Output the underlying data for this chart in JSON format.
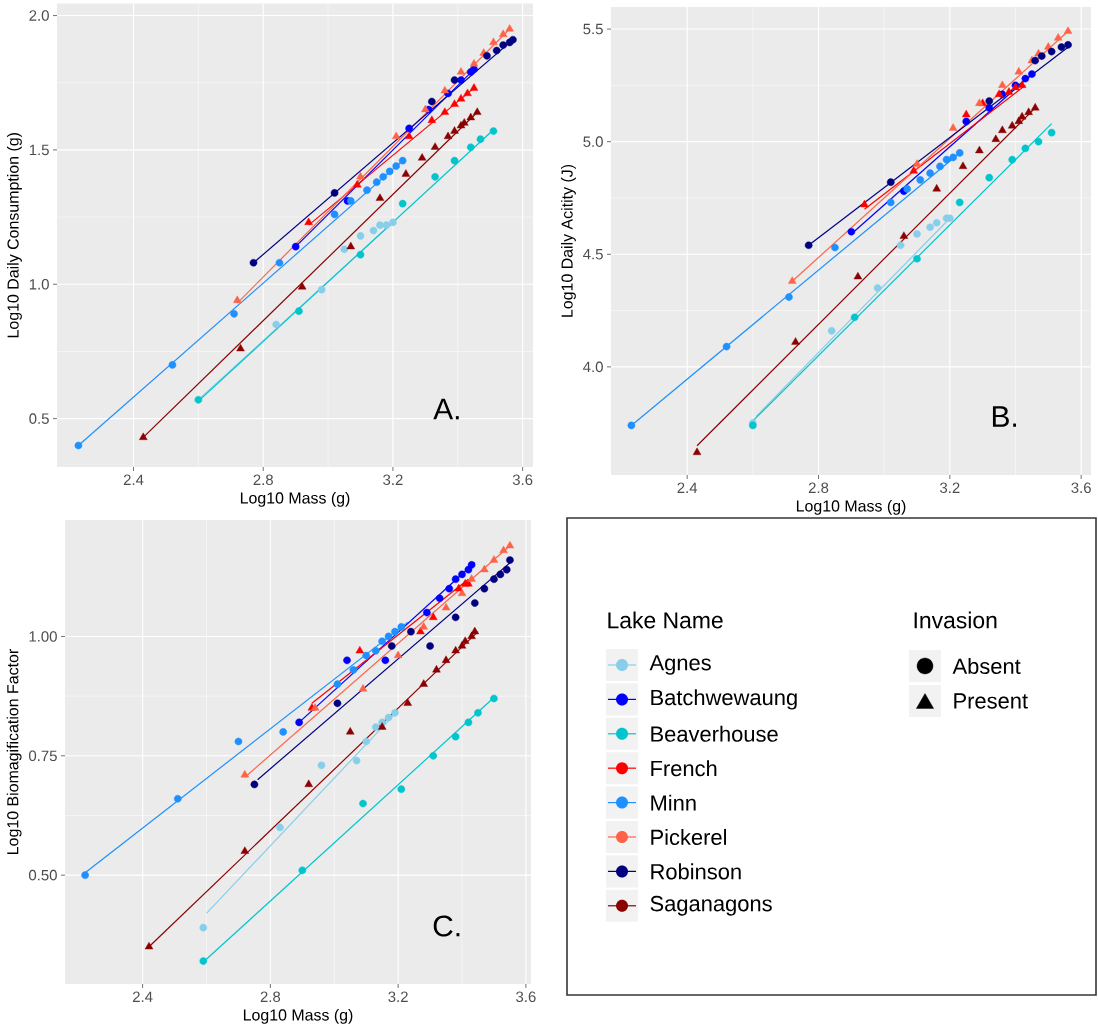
{
  "chart_data": [
    {
      "type": "scatter",
      "xlabel": "Log10 Mass (g)",
      "ylabel": "Log10 Daily Consumption (g)",
      "annotations": [
        "A."
      ],
      "grid": true,
      "xlim": [
        2.164,
        3.632
      ],
      "ylim": [
        0.32,
        2.045
      ],
      "xticks": [
        2.4,
        2.8,
        3.2,
        3.6
      ],
      "yticks": [
        {
          "value": 0.5,
          "label": "0.5"
        },
        {
          "value": 1.0,
          "label": "1.0"
        },
        {
          "value": 1.5,
          "label": "1.5"
        },
        {
          "value": 2.0,
          "label": "2.0"
        }
      ],
      "series": [
        {
          "color": "#87ceeb",
          "marker": "circle",
          "x": [
            2.84,
            2.98,
            3.05,
            3.1,
            3.14,
            3.16,
            3.18,
            3.2
          ],
          "values": [
            0.85,
            0.98,
            1.13,
            1.18,
            1.2,
            1.22,
            1.22,
            1.23
          ]
        },
        {
          "type": "line",
          "color": "#87ceeb",
          "x": [
            2.6,
            3.2
          ],
          "values": [
            0.57,
            1.23
          ]
        },
        {
          "color": "#0000ff",
          "marker": "circle",
          "x": [
            2.9,
            3.06,
            3.25,
            3.31,
            3.37,
            3.41,
            3.44,
            3.45
          ],
          "values": [
            1.14,
            1.31,
            1.58,
            1.65,
            1.71,
            1.76,
            1.79,
            1.8
          ]
        },
        {
          "type": "line",
          "color": "#0000ff",
          "x": [
            2.9,
            3.45
          ],
          "values": [
            1.14,
            1.8
          ]
        },
        {
          "color": "#00c5cd",
          "marker": "circle",
          "x": [
            2.6,
            2.91,
            3.1,
            3.23,
            3.33,
            3.39,
            3.44,
            3.47,
            3.51
          ],
          "values": [
            0.57,
            0.9,
            1.11,
            1.3,
            1.4,
            1.46,
            1.51,
            1.54,
            1.57
          ]
        },
        {
          "type": "line",
          "color": "#00c5cd",
          "x": [
            2.6,
            3.51
          ],
          "values": [
            0.565,
            1.575
          ]
        },
        {
          "color": "#ff0000",
          "marker": "triangle",
          "x": [
            2.94,
            3.09,
            3.25,
            3.32,
            3.36,
            3.39,
            3.41,
            3.43,
            3.45
          ],
          "values": [
            1.23,
            1.37,
            1.55,
            1.61,
            1.64,
            1.67,
            1.69,
            1.71,
            1.73
          ]
        },
        {
          "type": "line",
          "color": "#ff0000",
          "x": [
            2.94,
            3.45
          ],
          "values": [
            1.22,
            1.73
          ]
        },
        {
          "color": "#1e90ff",
          "marker": "circle",
          "x": [
            2.23,
            2.52,
            2.71,
            2.85,
            3.02,
            3.07,
            3.12,
            3.15,
            3.17,
            3.19,
            3.21,
            3.23
          ],
          "values": [
            0.4,
            0.7,
            0.89,
            1.08,
            1.26,
            1.31,
            1.35,
            1.38,
            1.4,
            1.42,
            1.44,
            1.46
          ]
        },
        {
          "type": "line",
          "color": "#1e90ff",
          "x": [
            2.23,
            3.23
          ],
          "values": [
            0.4,
            1.46
          ]
        },
        {
          "color": "#ff6347",
          "marker": "triangle",
          "x": [
            2.72,
            3.1,
            3.21,
            3.3,
            3.36,
            3.41,
            3.45,
            3.48,
            3.51,
            3.54,
            3.56
          ],
          "values": [
            0.94,
            1.4,
            1.55,
            1.65,
            1.72,
            1.79,
            1.82,
            1.86,
            1.9,
            1.93,
            1.95
          ]
        },
        {
          "type": "line",
          "color": "#ff6347",
          "x": [
            2.72,
            3.56
          ],
          "values": [
            0.93,
            1.95
          ]
        },
        {
          "color": "#000080",
          "marker": "circle",
          "x": [
            2.77,
            3.02,
            3.32,
            3.39,
            3.49,
            3.52,
            3.54,
            3.56,
            3.57
          ],
          "values": [
            1.08,
            1.34,
            1.68,
            1.76,
            1.85,
            1.87,
            1.89,
            1.9,
            1.91
          ]
        },
        {
          "type": "line",
          "color": "#000080",
          "x": [
            2.77,
            3.57
          ],
          "values": [
            1.08,
            1.91
          ]
        },
        {
          "color": "#8b0000",
          "marker": "triangle",
          "x": [
            2.43,
            2.73,
            2.92,
            3.07,
            3.16,
            3.24,
            3.29,
            3.33,
            3.37,
            3.39,
            3.41,
            3.42,
            3.44,
            3.46
          ],
          "values": [
            0.43,
            0.76,
            0.99,
            1.14,
            1.32,
            1.41,
            1.47,
            1.51,
            1.55,
            1.57,
            1.59,
            1.6,
            1.62,
            1.64
          ]
        },
        {
          "type": "line",
          "color": "#8b0000",
          "x": [
            2.43,
            3.46
          ],
          "values": [
            0.43,
            1.64
          ]
        }
      ]
    },
    {
      "type": "scatter",
      "xlabel": "Log10 Mass (g)",
      "ylabel": "Log10 Daily Acitity (J)",
      "annotations": [
        "B."
      ],
      "grid": true,
      "xlim": [
        2.168,
        3.63
      ],
      "ylim": [
        3.52,
        5.598
      ],
      "xticks": [
        2.4,
        2.8,
        3.2,
        3.6
      ],
      "yticks": [
        {
          "value": 4.0,
          "label": "4.0"
        },
        {
          "value": 4.5,
          "label": "4.5"
        },
        {
          "value": 5.0,
          "label": "5.0"
        },
        {
          "value": 5.5,
          "label": "5.5"
        }
      ],
      "series": [
        {
          "color": "#87ceeb",
          "marker": "circle",
          "x": [
            2.6,
            2.84,
            2.98,
            3.05,
            3.1,
            3.14,
            3.16,
            3.19,
            3.2
          ],
          "values": [
            3.75,
            4.16,
            4.35,
            4.54,
            4.59,
            4.62,
            4.64,
            4.66,
            4.66
          ]
        },
        {
          "type": "line",
          "color": "#87ceeb",
          "x": [
            2.61,
            3.2
          ],
          "values": [
            3.78,
            4.66
          ]
        },
        {
          "color": "#0000ff",
          "marker": "circle",
          "x": [
            2.9,
            3.06,
            3.25,
            3.32,
            3.36,
            3.4,
            3.43,
            3.45
          ],
          "values": [
            4.6,
            4.78,
            5.09,
            5.15,
            5.21,
            5.25,
            5.28,
            5.3
          ]
        },
        {
          "type": "line",
          "color": "#0000ff",
          "x": [
            2.9,
            3.45
          ],
          "values": [
            4.59,
            5.3
          ]
        },
        {
          "color": "#00c5cd",
          "marker": "circle",
          "x": [
            2.6,
            2.91,
            3.1,
            3.23,
            3.32,
            3.39,
            3.43,
            3.47,
            3.51
          ],
          "values": [
            3.74,
            4.22,
            4.48,
            4.73,
            4.84,
            4.92,
            4.97,
            5.0,
            5.04
          ]
        },
        {
          "type": "line",
          "color": "#00c5cd",
          "x": [
            2.6,
            3.51
          ],
          "values": [
            3.76,
            5.08
          ]
        },
        {
          "color": "#ff0000",
          "marker": "triangle",
          "x": [
            2.94,
            3.09,
            3.25,
            3.3,
            3.35,
            3.38,
            3.4,
            3.42
          ],
          "values": [
            4.72,
            4.87,
            5.12,
            5.17,
            5.21,
            5.22,
            5.24,
            5.25
          ]
        },
        {
          "type": "line",
          "color": "#ff0000",
          "x": [
            2.94,
            3.43
          ],
          "values": [
            4.7,
            5.25
          ]
        },
        {
          "color": "#1e90ff",
          "marker": "circle",
          "x": [
            2.23,
            2.52,
            2.71,
            2.85,
            3.02,
            3.07,
            3.11,
            3.14,
            3.17,
            3.19,
            3.21,
            3.23
          ],
          "values": [
            3.74,
            4.09,
            4.31,
            4.53,
            4.73,
            4.79,
            4.83,
            4.86,
            4.89,
            4.92,
            4.93,
            4.95
          ]
        },
        {
          "type": "line",
          "color": "#1e90ff",
          "x": [
            2.23,
            3.23
          ],
          "values": [
            3.74,
            4.95
          ]
        },
        {
          "color": "#ff6347",
          "marker": "triangle",
          "x": [
            2.72,
            3.1,
            3.21,
            3.29,
            3.36,
            3.41,
            3.45,
            3.47,
            3.5,
            3.53,
            3.56
          ],
          "values": [
            4.38,
            4.9,
            5.06,
            5.17,
            5.25,
            5.31,
            5.36,
            5.39,
            5.42,
            5.46,
            5.49
          ]
        },
        {
          "type": "line",
          "color": "#ff6347",
          "x": [
            2.72,
            3.56
          ],
          "values": [
            4.38,
            5.49
          ]
        },
        {
          "color": "#000080",
          "marker": "circle",
          "x": [
            2.77,
            3.02,
            3.32,
            3.46,
            3.48,
            3.51,
            3.54,
            3.56
          ],
          "values": [
            4.54,
            4.82,
            5.18,
            5.36,
            5.38,
            5.4,
            5.42,
            5.43
          ]
        },
        {
          "type": "line",
          "color": "#000080",
          "x": [
            2.77,
            3.57
          ],
          "values": [
            4.54,
            5.43
          ]
        },
        {
          "color": "#8b0000",
          "marker": "triangle",
          "x": [
            2.43,
            2.73,
            2.92,
            3.06,
            3.16,
            3.24,
            3.29,
            3.34,
            3.36,
            3.39,
            3.41,
            3.42,
            3.44,
            3.46
          ],
          "values": [
            3.62,
            4.11,
            4.4,
            4.58,
            4.79,
            4.89,
            4.96,
            5.01,
            5.05,
            5.07,
            5.09,
            5.11,
            5.13,
            5.15
          ]
        },
        {
          "type": "line",
          "color": "#8b0000",
          "x": [
            2.43,
            3.46
          ],
          "values": [
            3.65,
            5.15
          ]
        }
      ]
    },
    {
      "type": "scatter",
      "xlabel": "Log10 Mass (g)",
      "ylabel": "Log10 Biomagification Factor",
      "legend_title": "Lake Name",
      "legend": "right",
      "annotations": [
        "C.",
        "Invasion",
        "Absent",
        "Present"
      ],
      "grid": true,
      "xlim": [
        2.157,
        3.616
      ],
      "ylim": [
        0.272,
        1.244
      ],
      "xticks": [
        2.4,
        2.8,
        3.2,
        3.6
      ],
      "yticks": [
        {
          "value": 0.5,
          "label": "0.50"
        },
        {
          "value": 0.75,
          "label": "0.75"
        },
        {
          "value": 1.0,
          "label": "1.00"
        }
      ],
      "series": [
        {
          "name": "Agnes",
          "color": "#87ceeb",
          "marker": "circle",
          "x": [
            2.59,
            2.83,
            2.96,
            3.07,
            3.1,
            3.13,
            3.15,
            3.17,
            3.19
          ],
          "values": [
            0.39,
            0.6,
            0.73,
            0.74,
            0.78,
            0.81,
            0.82,
            0.83,
            0.84
          ]
        },
        {
          "type": "line",
          "color": "#87ceeb",
          "x": [
            2.6,
            3.2
          ],
          "values": [
            0.42,
            0.845
          ]
        },
        {
          "name": "Batchwewaung",
          "color": "#0000ff",
          "marker": "circle",
          "x": [
            2.89,
            3.04,
            3.16,
            3.29,
            3.33,
            3.36,
            3.38,
            3.4,
            3.42,
            3.43
          ],
          "values": [
            0.82,
            0.95,
            0.95,
            1.05,
            1.08,
            1.1,
            1.12,
            1.13,
            1.14,
            1.15
          ]
        },
        {
          "type": "line",
          "color": "#0000ff",
          "x": [
            2.89,
            3.44
          ],
          "values": [
            0.82,
            1.155
          ]
        },
        {
          "name": "Beaverhouse",
          "color": "#00c5cd",
          "marker": "circle",
          "x": [
            2.59,
            2.9,
            3.09,
            3.21,
            3.31,
            3.38,
            3.42,
            3.45,
            3.5
          ],
          "values": [
            0.32,
            0.51,
            0.65,
            0.68,
            0.75,
            0.79,
            0.82,
            0.84,
            0.87
          ]
        },
        {
          "type": "line",
          "color": "#00c5cd",
          "x": [
            2.59,
            3.5
          ],
          "values": [
            0.318,
            0.872
          ]
        },
        {
          "name": "French",
          "color": "#ff0000",
          "marker": "triangle",
          "x": [
            2.93,
            3.08,
            3.27,
            3.31,
            3.39,
            3.41,
            3.42
          ],
          "values": [
            0.85,
            0.97,
            1.01,
            1.04,
            1.1,
            1.11,
            1.11
          ]
        },
        {
          "type": "line",
          "color": "#ff0000",
          "x": [
            2.93,
            3.42
          ],
          "values": [
            0.86,
            1.12
          ]
        },
        {
          "name": "Minn",
          "color": "#1e90ff",
          "marker": "circle",
          "x": [
            2.22,
            2.51,
            2.7,
            2.84,
            3.01,
            3.06,
            3.1,
            3.13,
            3.15,
            3.17,
            3.19,
            3.21
          ],
          "values": [
            0.5,
            0.66,
            0.78,
            0.8,
            0.9,
            0.93,
            0.96,
            0.97,
            0.99,
            1.0,
            1.01,
            1.02
          ]
        },
        {
          "type": "line",
          "color": "#1e90ff",
          "x": [
            2.22,
            3.23
          ],
          "values": [
            0.505,
            1.03
          ]
        },
        {
          "name": "Pickerel",
          "color": "#ff6347",
          "marker": "triangle",
          "x": [
            2.72,
            2.94,
            3.09,
            3.2,
            3.28,
            3.35,
            3.4,
            3.43,
            3.47,
            3.5,
            3.53,
            3.55
          ],
          "values": [
            0.71,
            0.85,
            0.89,
            0.96,
            1.02,
            1.06,
            1.09,
            1.12,
            1.14,
            1.16,
            1.18,
            1.19
          ]
        },
        {
          "type": "line",
          "color": "#ff6347",
          "x": [
            2.72,
            3.55
          ],
          "values": [
            0.705,
            1.19
          ]
        },
        {
          "name": "Robinson",
          "color": "#000080",
          "marker": "circle",
          "x": [
            2.75,
            3.01,
            3.18,
            3.24,
            3.3,
            3.38,
            3.44,
            3.47,
            3.5,
            3.52,
            3.54,
            3.55
          ],
          "values": [
            0.69,
            0.86,
            0.98,
            1.01,
            0.98,
            1.04,
            1.07,
            1.1,
            1.12,
            1.13,
            1.14,
            1.16
          ]
        },
        {
          "type": "line",
          "color": "#000080",
          "x": [
            2.76,
            3.56
          ],
          "values": [
            0.7,
            1.16
          ]
        },
        {
          "name": "Saganagons",
          "color": "#8b0000",
          "marker": "triangle",
          "x": [
            2.42,
            2.72,
            2.92,
            3.05,
            3.15,
            3.23,
            3.28,
            3.32,
            3.35,
            3.38,
            3.4,
            3.41,
            3.43,
            3.44
          ],
          "values": [
            0.35,
            0.55,
            0.69,
            0.8,
            0.81,
            0.86,
            0.9,
            0.93,
            0.95,
            0.97,
            0.98,
            0.99,
            1.0,
            1.01
          ]
        },
        {
          "type": "line",
          "color": "#8b0000",
          "x": [
            2.42,
            3.45
          ],
          "values": [
            0.35,
            1.01
          ]
        }
      ]
    }
  ]
}
